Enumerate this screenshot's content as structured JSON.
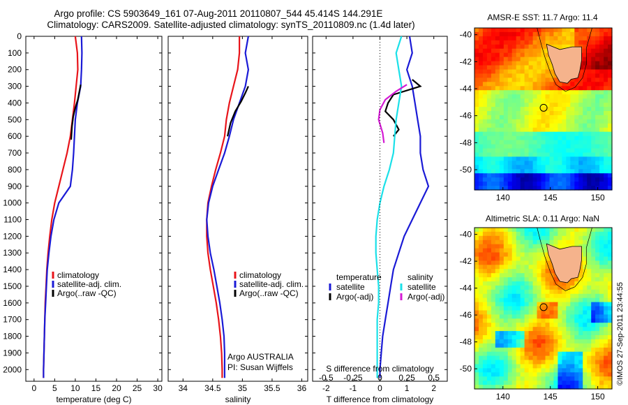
{
  "header": {
    "line1": "Argo profile: CS 5903649_161 07-Aug-2011 20110807_544 45.414S 144.291E",
    "line2": "Climatology: CARS2009. Satellite-adjusted climatology: synTS_20110809.nc (1.4d later)"
  },
  "footer_stamp": "©IMOS 27-Sep-2011 23:44:55",
  "colors": {
    "climatology": "#e8141a",
    "satellite": "#1a1ad6",
    "argo": "#000000",
    "s_satellite": "#1ae0e8",
    "s_argo": "#d41ad4",
    "land": "#f5b38c"
  },
  "chart_data": [
    {
      "type": "line",
      "panel": "temperature",
      "xlabel": "temperature (deg C)",
      "ylabel": "",
      "xlim": [
        -2,
        31
      ],
      "ylim": [
        2070,
        0
      ],
      "xticks": [
        0,
        5,
        10,
        15,
        20,
        25,
        30
      ],
      "yticks": [
        0,
        100,
        200,
        300,
        400,
        500,
        600,
        700,
        800,
        900,
        1000,
        1100,
        1200,
        1300,
        1400,
        1500,
        1600,
        1700,
        1800,
        1900,
        2000
      ],
      "legend": [
        "climatology",
        "satellite-adj. clim.",
        "Argo(..raw -QC)"
      ],
      "legend_position": "bottom-center",
      "series": [
        {
          "name": "climatology",
          "color_key": "climatology",
          "x": [
            10.0,
            10.5,
            10.6,
            10.2,
            9.8,
            9.3,
            8.8,
            8.0,
            7.0,
            6.0,
            5.0,
            4.3,
            3.8,
            3.4,
            3.1,
            2.9,
            2.7,
            2.6,
            2.5,
            2.4,
            2.3,
            2.3
          ],
          "y": [
            0,
            100,
            200,
            300,
            400,
            500,
            600,
            700,
            800,
            900,
            1000,
            1100,
            1200,
            1300,
            1400,
            1500,
            1600,
            1700,
            1800,
            1900,
            2000,
            2050
          ]
        },
        {
          "name": "satellite-adj. clim.",
          "color_key": "satellite",
          "x": [
            11.5,
            11.6,
            11.5,
            11.3,
            10.5,
            10.0,
            9.8,
            9.6,
            9.3,
            8.8,
            6.0,
            4.8,
            4.1,
            3.6,
            3.2,
            3.0,
            2.8,
            2.6,
            2.5,
            2.4,
            2.3,
            2.3
          ],
          "y": [
            0,
            100,
            200,
            300,
            400,
            500,
            600,
            700,
            800,
            900,
            1000,
            1100,
            1200,
            1300,
            1400,
            1500,
            1600,
            1700,
            1800,
            1900,
            2000,
            2050
          ]
        },
        {
          "name": "Argo(..raw -QC)",
          "color_key": "argo",
          "x": [
            11.3,
            11.0,
            10.6,
            10.0,
            9.5,
            9.2,
            9.0
          ],
          "y": [
            290,
            330,
            380,
            430,
            480,
            540,
            620
          ]
        }
      ]
    },
    {
      "type": "line",
      "panel": "salinity",
      "xlabel": "salinity",
      "xlim": [
        33.75,
        36.1
      ],
      "ylim": [
        2070,
        0
      ],
      "xticks": [
        34,
        34.5,
        35,
        35.5,
        36
      ],
      "legend": [
        "climatology",
        "satellite-adj. clim.",
        "Argo(..raw -QC)"
      ],
      "legend_position": "bottom-center",
      "annotation": [
        "Argo AUSTRALIA",
        "PI: Susan Wijffels"
      ],
      "series": [
        {
          "name": "climatology",
          "color_key": "climatology",
          "x": [
            34.95,
            34.95,
            34.92,
            34.85,
            34.78,
            34.73,
            34.7,
            34.63,
            34.55,
            34.48,
            34.42,
            34.4,
            34.4,
            34.42,
            34.46,
            34.51,
            34.56,
            34.6,
            34.63,
            34.65,
            34.66,
            34.66
          ],
          "y": [
            0,
            100,
            200,
            300,
            400,
            500,
            600,
            700,
            800,
            900,
            1000,
            1100,
            1200,
            1300,
            1400,
            1500,
            1600,
            1700,
            1800,
            1900,
            2000,
            2050
          ]
        },
        {
          "name": "satellite-adj. clim.",
          "color_key": "satellite",
          "x": [
            35.1,
            35.05,
            35.1,
            35.05,
            34.95,
            34.85,
            34.78,
            34.7,
            34.6,
            34.5,
            34.43,
            34.4,
            34.42,
            34.46,
            34.52,
            34.57,
            34.62,
            34.66,
            34.69,
            34.7,
            34.7,
            34.7
          ],
          "y": [
            0,
            100,
            200,
            300,
            400,
            500,
            600,
            700,
            800,
            900,
            1000,
            1100,
            1200,
            1300,
            1400,
            1500,
            1600,
            1700,
            1800,
            1900,
            2000,
            2050
          ]
        },
        {
          "name": "Argo(..raw -QC)",
          "color_key": "argo",
          "x": [
            35.1,
            35.05,
            34.98,
            34.88,
            34.8,
            34.75
          ],
          "y": [
            300,
            340,
            390,
            450,
            520,
            600
          ]
        }
      ]
    },
    {
      "type": "line",
      "panel": "difference",
      "xlabel": "T difference from climatology",
      "xlabel_top": "S difference from climatology",
      "xlim": [
        -2.5,
        2.5
      ],
      "ylim": [
        2070,
        0
      ],
      "xticks": [
        -2,
        -1,
        0,
        1,
        2
      ],
      "xticks_labels": [
        "-2",
        "-1",
        "0",
        "1",
        "2"
      ],
      "s_ticks_labels": [
        "-0.5",
        "-0.25",
        "0",
        "0.25",
        "0.5"
      ],
      "legend": [
        "temperature",
        "satellite",
        "Argo(-adj)",
        "salinity",
        "satellite",
        "Argo(-adj)"
      ],
      "legend_position": "bottom-center",
      "series": [
        {
          "name": "satellite",
          "group": "temperature",
          "color_key": "satellite",
          "x": [
            1.1,
            1.2,
            1.0,
            1.2,
            1.3,
            1.4,
            1.5,
            1.5,
            1.6,
            1.8,
            1.5,
            1.2,
            0.9,
            0.7,
            0.5,
            0.4,
            0.3,
            0.2,
            0.1,
            0.05,
            0.0,
            0.0
          ],
          "y": [
            0,
            100,
            200,
            300,
            400,
            500,
            600,
            700,
            800,
            900,
            1000,
            1100,
            1200,
            1300,
            1400,
            1500,
            1600,
            1700,
            1800,
            1900,
            2000,
            2050
          ]
        },
        {
          "name": "Argo(-adj)",
          "group": "temperature",
          "color_key": "argo",
          "x": [
            1.2,
            1.5,
            0.5,
            0.3,
            0.2,
            0.5,
            0.7,
            0.5
          ],
          "y": [
            260,
            300,
            350,
            400,
            450,
            500,
            560,
            600
          ]
        },
        {
          "name": "satellite",
          "group": "salinity",
          "color_key": "s_satellite",
          "x": [
            0.8,
            0.6,
            0.7,
            0.8,
            0.7,
            0.6,
            0.55,
            0.5,
            0.35,
            0.15,
            0.0,
            -0.1,
            -0.15,
            -0.15,
            -0.1,
            -0.05,
            -0.05,
            -0.1,
            -0.1,
            -0.1,
            -0.1,
            -0.1
          ],
          "y": [
            0,
            100,
            200,
            300,
            400,
            500,
            600,
            700,
            800,
            900,
            1000,
            1100,
            1200,
            1300,
            1400,
            1500,
            1600,
            1700,
            1800,
            1900,
            2000,
            2050
          ]
        },
        {
          "name": "Argo(-adj)",
          "group": "salinity",
          "color_key": "s_argo",
          "x": [
            1.0,
            0.6,
            0.2,
            0.0,
            -0.05,
            0.1,
            0.15
          ],
          "y": [
            290,
            330,
            380,
            440,
            500,
            580,
            640
          ]
        }
      ]
    },
    {
      "type": "heatmap",
      "panel": "map",
      "title": "AMSR-E SST: 11.7 Argo: 11.4",
      "xticks": [
        140,
        145,
        150
      ],
      "yticks": [
        -40,
        -42,
        -44,
        -46,
        -48,
        -50
      ],
      "xlim": [
        137,
        151.5
      ],
      "ylim": [
        -51.5,
        -39.5
      ],
      "marker": {
        "lon": 144.291,
        "lat": -45.414
      }
    },
    {
      "type": "heatmap",
      "panel": "map",
      "title": "Altimetric SLA: 0.11 Argo: NaN",
      "xticks": [
        140,
        145,
        150
      ],
      "yticks": [
        -40,
        -42,
        -44,
        -46,
        -48,
        -50
      ],
      "xlim": [
        137,
        151.5
      ],
      "ylim": [
        -51.5,
        -39.5
      ],
      "marker": {
        "lon": 144.291,
        "lat": -45.414
      }
    }
  ]
}
